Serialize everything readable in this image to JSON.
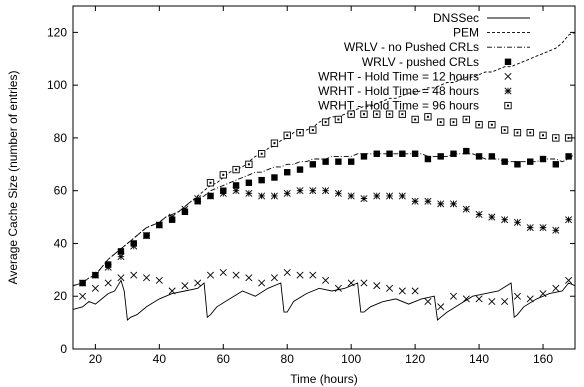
{
  "chart_data": {
    "type": "line",
    "title": "",
    "xlabel": "Time (hours)",
    "ylabel": "Average Cache Size (number of entries)",
    "xlim": [
      13,
      170
    ],
    "ylim": [
      0,
      130
    ],
    "xticks": [
      20,
      40,
      60,
      80,
      100,
      120,
      140,
      160
    ],
    "yticks": [
      0,
      20,
      40,
      60,
      80,
      100,
      120
    ],
    "grid": false,
    "legend_position": "top-right",
    "series": [
      {
        "name": "DNSSec",
        "style": "line",
        "dash": "solid",
        "x": [
          13,
          16,
          18,
          20,
          22,
          24,
          26,
          27,
          28,
          29,
          30,
          31,
          33,
          36,
          40,
          44,
          48,
          52,
          54,
          55,
          56,
          58,
          62,
          66,
          70,
          74,
          78,
          79,
          80,
          82,
          86,
          90,
          94,
          98,
          102,
          103,
          104,
          106,
          110,
          114,
          118,
          122,
          126,
          127,
          128,
          130,
          134,
          138,
          142,
          146,
          150,
          151,
          152,
          154,
          158,
          162,
          166,
          168,
          170
        ],
        "y": [
          15,
          16,
          18,
          17,
          19,
          21,
          22,
          24,
          26,
          22,
          11,
          12,
          13,
          16,
          19,
          21,
          22,
          23,
          25,
          12,
          13,
          16,
          19,
          22,
          20,
          23,
          25,
          14,
          14,
          18,
          21,
          23,
          22,
          23,
          25,
          14,
          14,
          16,
          18,
          19,
          17,
          19,
          20,
          11,
          12,
          14,
          17,
          20,
          21,
          22,
          25,
          12,
          13,
          16,
          19,
          21,
          22,
          25,
          24
        ]
      },
      {
        "name": "PEM",
        "style": "line",
        "dash": "dashed",
        "x": [
          13,
          16,
          18,
          20,
          22,
          24,
          26,
          28,
          30,
          32,
          34,
          36,
          38,
          40,
          42,
          44,
          46,
          48,
          50,
          52,
          54,
          56,
          58,
          60,
          62,
          64,
          66,
          68,
          70,
          72,
          74,
          76,
          78,
          80,
          82,
          84,
          86,
          88,
          90,
          92,
          94,
          96,
          98,
          100,
          102,
          104,
          106,
          108,
          110,
          112,
          114,
          116,
          118,
          120,
          122,
          124,
          126,
          128,
          130,
          132,
          134,
          136,
          138,
          140,
          142,
          144,
          146,
          148,
          150,
          152,
          154,
          156,
          158,
          160,
          162,
          164,
          166,
          168,
          170
        ],
        "y": [
          24,
          25,
          27,
          28,
          31,
          34,
          36,
          38,
          40,
          42,
          44,
          46,
          47,
          48,
          50,
          51,
          52,
          54,
          56,
          58,
          60,
          62,
          63,
          65,
          67,
          68,
          69,
          71,
          73,
          74,
          76,
          77,
          79,
          80,
          82,
          83,
          83,
          84,
          86,
          87,
          88,
          88,
          89,
          90,
          91,
          92,
          92,
          93,
          94,
          95,
          95,
          96,
          97,
          97,
          98,
          99,
          99,
          100,
          101,
          101,
          102,
          103,
          103,
          104,
          105,
          105,
          106,
          107,
          107,
          108,
          109,
          110,
          111,
          112,
          113,
          114,
          116,
          119,
          120
        ]
      },
      {
        "name": "WRLV - no Pushed CRLs",
        "style": "line",
        "dash": "dashdot",
        "x": [
          13,
          16,
          18,
          20,
          22,
          24,
          26,
          28,
          30,
          32,
          34,
          36,
          38,
          40,
          42,
          44,
          46,
          48,
          50,
          52,
          54,
          56,
          58,
          60,
          62,
          64,
          66,
          68,
          70,
          72,
          74,
          76,
          78,
          80,
          82,
          84,
          86,
          88,
          90,
          92,
          94,
          96,
          98,
          100,
          102,
          104,
          106,
          108,
          110,
          112,
          114,
          116,
          118,
          120,
          122,
          124,
          126,
          128,
          130,
          132,
          134,
          136,
          138,
          140,
          142,
          144,
          146,
          148,
          150,
          152,
          154,
          156,
          158,
          160,
          162,
          164,
          166,
          168,
          170
        ],
        "y": [
          24,
          25,
          27,
          28,
          31,
          34,
          36,
          38,
          40,
          42,
          44,
          46,
          47,
          48,
          50,
          51,
          52,
          54,
          56,
          57,
          58,
          60,
          61,
          62,
          63,
          64,
          65,
          66,
          67,
          67,
          68,
          69,
          69,
          70,
          70,
          71,
          71,
          72,
          72,
          72,
          73,
          73,
          73,
          73,
          74,
          74,
          74,
          74,
          74,
          74,
          74,
          74,
          74,
          74,
          74,
          73,
          73,
          73,
          73,
          74,
          74,
          74,
          74,
          73,
          72,
          72,
          72,
          71,
          71,
          71,
          71,
          71,
          71,
          72,
          72,
          72,
          71,
          72,
          74
        ]
      },
      {
        "name": "WRLV - pushed CRLs",
        "style": "marker",
        "marker": "filled-square",
        "x": [
          16,
          20,
          24,
          28,
          32,
          36,
          40,
          44,
          48,
          52,
          56,
          60,
          64,
          68,
          72,
          76,
          80,
          84,
          88,
          92,
          96,
          100,
          104,
          108,
          112,
          116,
          120,
          124,
          128,
          132,
          136,
          140,
          144,
          148,
          152,
          156,
          160,
          164,
          168
        ],
        "y": [
          25,
          28,
          32,
          37,
          40,
          43,
          47,
          49,
          52,
          56,
          58,
          60,
          62,
          63,
          64,
          65,
          67,
          68,
          70,
          71,
          71,
          71,
          73,
          74,
          74,
          74,
          74,
          72,
          73,
          74,
          75,
          73,
          73,
          71,
          70,
          71,
          72,
          70,
          73
        ]
      },
      {
        "name": "WRHT - Hold Time = 12 hours",
        "style": "marker",
        "marker": "cross",
        "x": [
          16,
          20,
          24,
          28,
          32,
          36,
          40,
          44,
          48,
          52,
          56,
          60,
          64,
          68,
          72,
          76,
          80,
          84,
          88,
          92,
          96,
          100,
          104,
          108,
          112,
          116,
          120,
          124,
          128,
          132,
          136,
          140,
          144,
          148,
          152,
          156,
          160,
          164,
          168
        ],
        "y": [
          20,
          23,
          25,
          27,
          28,
          27,
          26,
          22,
          24,
          25,
          28,
          29,
          28,
          27,
          25,
          27,
          29,
          28,
          28,
          26,
          23,
          25,
          25,
          24,
          23,
          22,
          22,
          18,
          16,
          20,
          19,
          19,
          18,
          18,
          20,
          19,
          21,
          23,
          26
        ]
      },
      {
        "name": "WRHT - Hold Time = 48 hours",
        "style": "marker",
        "marker": "asterisk",
        "x": [
          16,
          20,
          24,
          28,
          32,
          36,
          40,
          44,
          48,
          52,
          56,
          60,
          64,
          68,
          72,
          76,
          80,
          84,
          88,
          92,
          96,
          100,
          104,
          108,
          112,
          116,
          120,
          124,
          128,
          132,
          136,
          140,
          144,
          148,
          152,
          156,
          160,
          164,
          168
        ],
        "y": [
          25,
          28,
          31,
          35,
          39,
          43,
          47,
          50,
          53,
          57,
          58,
          59,
          60,
          59,
          58,
          58,
          59,
          60,
          60,
          60,
          59,
          58,
          57,
          58,
          58,
          58,
          56,
          56,
          55,
          55,
          53,
          51,
          50,
          49,
          48,
          46,
          46,
          45,
          49
        ]
      },
      {
        "name": "WRHT - Hold Time = 96 hours",
        "style": "marker",
        "marker": "dotted-square",
        "x": [
          56,
          60,
          64,
          68,
          72,
          76,
          80,
          84,
          88,
          92,
          96,
          100,
          104,
          108,
          112,
          116,
          120,
          124,
          128,
          132,
          136,
          140,
          144,
          148,
          152,
          156,
          160,
          164,
          168
        ],
        "y": [
          63,
          66,
          68,
          70,
          74,
          78,
          81,
          82,
          83,
          86,
          87,
          89,
          89,
          89,
          89,
          89,
          87,
          88,
          86,
          86,
          87,
          85,
          85,
          83,
          82,
          82,
          81,
          80,
          80
        ]
      }
    ]
  }
}
